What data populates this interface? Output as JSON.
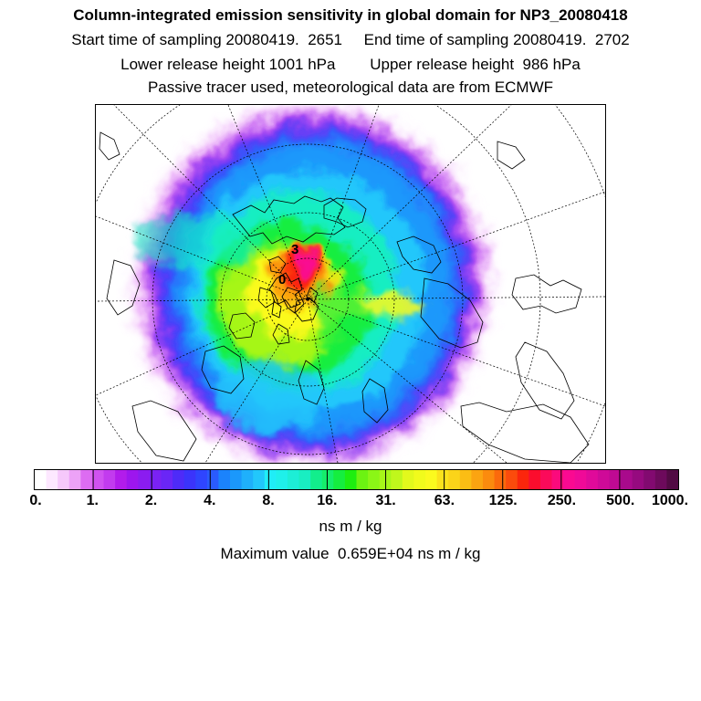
{
  "title": {
    "main": "Column-integrated emission sensitivity in global domain for NP3_20080418",
    "line2": "Start time of sampling 20080419.  2651     End time of sampling 20080419.  2702",
    "line3": "Lower release height 1001 hPa        Upper release height  986 hPa",
    "line4": "Passive tracer used, meteorological data are from ECMWF"
  },
  "map": {
    "projection": "north-polar-stereographic",
    "field": "column-integrated emission sensitivity",
    "grid": true,
    "coastlines": true,
    "labels": [
      "3",
      "0"
    ]
  },
  "colorbar": {
    "ticks": [
      "0.",
      "1.",
      "2.",
      "4.",
      "8.",
      "16.",
      "31.",
      "63.",
      "125.",
      "250.",
      "500.",
      "1000."
    ],
    "colors": [
      "#ffffff",
      "#fde8ff",
      "#f6c8fb",
      "#eda2f7",
      "#dd6cf2",
      "#d052f0",
      "#c23bee",
      "#b21ceb",
      "#9d16ee",
      "#8b1cf0",
      "#7a22f3",
      "#6a26f6",
      "#4e2bf8",
      "#3b34fb",
      "#2f45fe",
      "#2a5bfe",
      "#1b83fc",
      "#1b98fb",
      "#1fb0fb",
      "#22c7fb",
      "#20edf7",
      "#1ff0ea",
      "#1deed6",
      "#19eec2",
      "#12ee8c",
      "#15ee6b",
      "#15ee3f",
      "#1dee10",
      "#6cf312",
      "#8bf616",
      "#a6f619",
      "#c0f71c",
      "#e2f91c",
      "#f1fb1c",
      "#fbfa1e",
      "#fbe21c",
      "#fbd419",
      "#fbbd14",
      "#fba411",
      "#fb8b0e",
      "#fb6a0c",
      "#fb4b0c",
      "#fb260c",
      "#fb0d2d",
      "#fb0a5a",
      "#fb0a7c",
      "#fa0a91",
      "#f00a98",
      "#e00a9a",
      "#cf0a98",
      "#bf0a93",
      "#a90a8c",
      "#960a7f",
      "#820a70",
      "#6d0a5c",
      "#520a44"
    ],
    "units": "ns m / kg"
  },
  "max_value": {
    "text": "Maximum value  0.659E+04 ns m / kg"
  }
}
